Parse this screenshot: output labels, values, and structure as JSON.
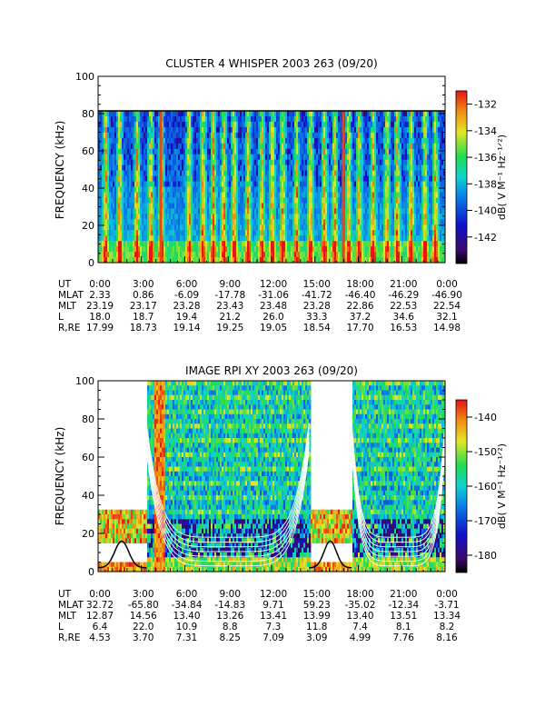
{
  "chart_data": [
    {
      "type": "heatmap",
      "title": "CLUSTER 4 WHISPER 2003 263 (09/20)",
      "ylabel": "FREQUENCY (kHz)",
      "ylim": [
        0,
        100
      ],
      "yticks": [
        "0",
        "20",
        "40",
        "60",
        "80",
        "100"
      ],
      "data_top_khz": 80,
      "x_tick_labels": [
        "0:00",
        "3:00",
        "6:00",
        "9:00",
        "12:00",
        "15:00",
        "18:00",
        "21:00",
        "0:00"
      ],
      "colorbar": {
        "label": "dB( V M⁻¹ Hz⁻¹ᐟ²)",
        "range": [
          -144,
          -131
        ],
        "ticks": [
          "-132",
          "-134",
          "-136",
          "-138",
          "-140",
          "-142"
        ]
      },
      "ephemeris": [
        {
          "name": "UT",
          "values": [
            "0:00",
            "3:00",
            "6:00",
            "9:00",
            "12:00",
            "15:00",
            "18:00",
            "21:00",
            "0:00"
          ]
        },
        {
          "name": "MLAT",
          "values": [
            "2.33",
            "0.86",
            "-6.09",
            "-17.78",
            "-31.06",
            "-41.72",
            "-46.40",
            "-46.29",
            "-46.90"
          ]
        },
        {
          "name": "MLT",
          "values": [
            "23.19",
            "23.17",
            "23.28",
            "23.43",
            "23.48",
            "23.28",
            "22.86",
            "22.53",
            "22.54"
          ]
        },
        {
          "name": "L",
          "values": [
            "18.0",
            "18.7",
            "19.4",
            "21.2",
            "26.0",
            "33.3",
            "37.2",
            "34.6",
            "32.1"
          ]
        },
        {
          "name": "R,RE",
          "values": [
            "17.99",
            "18.73",
            "19.14",
            "19.25",
            "19.05",
            "18.54",
            "17.70",
            "16.53",
            "14.98"
          ]
        }
      ]
    },
    {
      "type": "heatmap",
      "title": "IMAGE RPI XY 2003 263 (09/20)",
      "ylabel": "FREQUENCY (kHz)",
      "ylim": [
        0,
        100
      ],
      "yticks": [
        "0",
        "20",
        "40",
        "60",
        "80",
        "100"
      ],
      "x_tick_labels": [
        "0:00",
        "3:00",
        "6:00",
        "9:00",
        "12:00",
        "15:00",
        "18:00",
        "21:00",
        "0:00"
      ],
      "colorbar": {
        "label": "dB( V M⁻¹ Hz⁻¹ᐟ²)",
        "range": [
          -185,
          -135
        ],
        "ticks": [
          "-140",
          "-150",
          "-160",
          "-170",
          "-180"
        ]
      },
      "ephemeris": [
        {
          "name": "UT",
          "values": [
            "0:00",
            "3:00",
            "6:00",
            "9:00",
            "12:00",
            "15:00",
            "18:00",
            "21:00",
            "0:00"
          ]
        },
        {
          "name": "MLAT",
          "values": [
            "32.72",
            "-65.80",
            "-34.84",
            "-14.83",
            "9.71",
            "59.23",
            "-35.02",
            "-12.34",
            "-3.71"
          ]
        },
        {
          "name": "MLT",
          "values": [
            "12.87",
            "14.56",
            "13.40",
            "13.26",
            "13.41",
            "13.99",
            "13.40",
            "13.51",
            "13.34"
          ]
        },
        {
          "name": "L",
          "values": [
            "6.4",
            "22.0",
            "10.9",
            "8.8",
            "7.3",
            "11.8",
            "7.4",
            "8.1",
            "8.2"
          ]
        },
        {
          "name": "R,RE",
          "values": [
            "4.53",
            "3.70",
            "7.31",
            "8.25",
            "7.09",
            "3.09",
            "4.99",
            "7.76",
            "8.16"
          ]
        }
      ]
    }
  ]
}
